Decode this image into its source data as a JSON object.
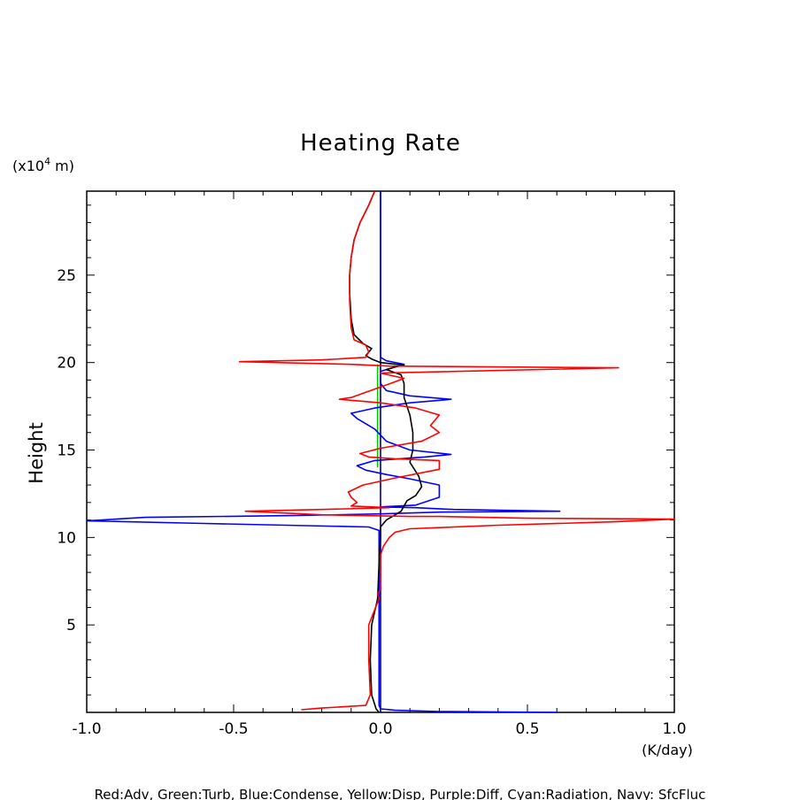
{
  "chart_data": {
    "type": "line",
    "title": "Heating Rate",
    "xlabel": "(K/day)",
    "ylabel": "Height",
    "y_unit": "(x10^4 m)",
    "y_unit_parts": {
      "prefix": "(x10",
      "exp": "4",
      "suffix": " m)"
    },
    "xlim": [
      -1.0,
      1.0
    ],
    "ylim": [
      0,
      29.8
    ],
    "x_ticks": [
      "-1.0",
      "-0.5",
      "0.0",
      "0.5",
      "1.0"
    ],
    "x_tick_values": [
      -1.0,
      -0.5,
      0.0,
      0.5,
      1.0
    ],
    "y_ticks": [
      "5",
      "10",
      "15",
      "20",
      "25"
    ],
    "y_tick_values": [
      5,
      10,
      15,
      20,
      25
    ],
    "grid": false,
    "caption": "Red:Adv, Green:Turb, Blue:Condense, Yellow:Disp, Purple:Diff, Cyan:Radiation, Navy: SfcFluc",
    "series": [
      {
        "name": "Navy",
        "color": "#000080",
        "points": [
          [
            0.0,
            0.0
          ],
          [
            0.0,
            29.8
          ]
        ]
      },
      {
        "name": "Green",
        "color": "#00cc00",
        "points": [
          [
            -0.01,
            14.0
          ],
          [
            -0.01,
            19.9
          ]
        ]
      },
      {
        "name": "Blue",
        "color": "#0000ff",
        "points": [
          [
            0.6,
            0.0
          ],
          [
            0.2,
            0.05
          ],
          [
            0.05,
            0.12
          ],
          [
            0.0,
            0.2
          ],
          [
            -0.005,
            0.4
          ],
          [
            -0.005,
            10.4
          ],
          [
            -0.04,
            10.6
          ],
          [
            -0.6,
            10.8
          ],
          [
            -1.0,
            10.95
          ],
          [
            -0.8,
            11.15
          ],
          [
            -0.3,
            11.25
          ],
          [
            0.0,
            11.35
          ],
          [
            0.2,
            11.45
          ],
          [
            0.61,
            11.5
          ],
          [
            0.25,
            11.6
          ],
          [
            0.12,
            11.7
          ],
          [
            0.0,
            11.75
          ],
          [
            0.12,
            11.85
          ],
          [
            0.2,
            12.3
          ],
          [
            0.2,
            13.0
          ],
          [
            0.1,
            13.35
          ],
          [
            0.02,
            13.6
          ],
          [
            -0.05,
            13.85
          ],
          [
            -0.08,
            14.1
          ],
          [
            -0.02,
            14.4
          ],
          [
            0.15,
            14.6
          ],
          [
            0.24,
            14.75
          ],
          [
            0.1,
            15.0
          ],
          [
            0.02,
            15.5
          ],
          [
            -0.02,
            16.2
          ],
          [
            -0.08,
            16.8
          ],
          [
            -0.1,
            17.1
          ],
          [
            -0.02,
            17.4
          ],
          [
            0.1,
            17.7
          ],
          [
            0.24,
            17.9
          ],
          [
            0.1,
            18.1
          ],
          [
            0.02,
            18.4
          ],
          [
            0.0,
            18.8
          ],
          [
            0.0,
            19.5
          ],
          [
            0.08,
            19.9
          ],
          [
            0.02,
            20.1
          ],
          [
            0.0,
            20.3
          ],
          [
            0.0,
            29.8
          ]
        ]
      },
      {
        "name": "Black",
        "color": "#000000",
        "points": [
          [
            -0.005,
            0.0
          ],
          [
            -0.015,
            0.2
          ],
          [
            -0.03,
            1.0
          ],
          [
            -0.035,
            3.0
          ],
          [
            -0.03,
            5.0
          ],
          [
            -0.01,
            6.5
          ],
          [
            -0.005,
            8.5
          ],
          [
            0.0,
            10.0
          ],
          [
            0.0,
            10.6
          ],
          [
            0.02,
            11.0
          ],
          [
            0.05,
            11.3
          ],
          [
            0.07,
            11.5
          ],
          [
            0.08,
            11.8
          ],
          [
            0.09,
            12.1
          ],
          [
            0.12,
            12.4
          ],
          [
            0.14,
            12.9
          ],
          [
            0.13,
            13.5
          ],
          [
            0.1,
            14.3
          ],
          [
            0.11,
            15.0
          ],
          [
            0.11,
            16.0
          ],
          [
            0.1,
            17.0
          ],
          [
            0.08,
            18.0
          ],
          [
            0.08,
            18.8
          ],
          [
            0.07,
            19.3
          ],
          [
            0.02,
            19.6
          ],
          [
            0.05,
            19.75
          ],
          [
            0.08,
            19.85
          ],
          [
            0.0,
            20.0
          ],
          [
            -0.03,
            20.2
          ],
          [
            -0.05,
            20.4
          ],
          [
            -0.03,
            20.8
          ],
          [
            -0.06,
            21.1
          ],
          [
            -0.09,
            21.6
          ],
          [
            -0.1,
            22.5
          ],
          [
            -0.105,
            24.0
          ],
          [
            -0.105,
            25.0
          ],
          [
            -0.1,
            26.0
          ],
          [
            -0.09,
            27.0
          ],
          [
            -0.07,
            28.0
          ],
          [
            -0.04,
            29.0
          ],
          [
            -0.02,
            29.8
          ]
        ]
      },
      {
        "name": "Red",
        "color": "#ff0000",
        "points": [
          [
            -0.27,
            0.15
          ],
          [
            -0.2,
            0.25
          ],
          [
            -0.05,
            0.4
          ],
          [
            -0.035,
            1.0
          ],
          [
            -0.04,
            3.0
          ],
          [
            -0.04,
            5.0
          ],
          [
            -0.005,
            6.5
          ],
          [
            -0.01,
            6.8
          ],
          [
            0.0,
            7.0
          ],
          [
            0.0,
            9.0
          ],
          [
            0.01,
            9.5
          ],
          [
            0.03,
            10.0
          ],
          [
            0.05,
            10.3
          ],
          [
            0.1,
            10.5
          ],
          [
            0.4,
            10.7
          ],
          [
            0.8,
            10.9
          ],
          [
            1.0,
            11.05
          ],
          [
            0.5,
            11.1
          ],
          [
            0.2,
            11.2
          ],
          [
            0.1,
            11.2
          ],
          [
            -0.2,
            11.3
          ],
          [
            -0.46,
            11.5
          ],
          [
            -0.2,
            11.6
          ],
          [
            0.03,
            11.7
          ],
          [
            -0.1,
            11.8
          ],
          [
            -0.08,
            12.0
          ],
          [
            -0.1,
            12.3
          ],
          [
            -0.11,
            12.6
          ],
          [
            -0.06,
            13.0
          ],
          [
            0.05,
            13.4
          ],
          [
            0.2,
            13.9
          ],
          [
            0.2,
            14.4
          ],
          [
            0.05,
            14.5
          ],
          [
            -0.04,
            14.6
          ],
          [
            -0.07,
            14.8
          ],
          [
            0.0,
            15.1
          ],
          [
            0.14,
            15.5
          ],
          [
            0.2,
            16.0
          ],
          [
            0.17,
            16.4
          ],
          [
            0.2,
            17.0
          ],
          [
            0.12,
            17.4
          ],
          [
            0.0,
            17.7
          ],
          [
            -0.14,
            17.9
          ],
          [
            -0.1,
            18.0
          ],
          [
            -0.05,
            18.3
          ],
          [
            0.0,
            18.6
          ],
          [
            0.05,
            18.9
          ],
          [
            0.08,
            19.1
          ],
          [
            0.0,
            19.4
          ],
          [
            0.81,
            19.7
          ],
          [
            0.03,
            19.8
          ],
          [
            -0.1,
            19.9
          ],
          [
            -0.48,
            20.05
          ],
          [
            -0.2,
            20.15
          ],
          [
            -0.05,
            20.3
          ],
          [
            -0.04,
            20.6
          ],
          [
            -0.05,
            21.0
          ],
          [
            -0.09,
            21.3
          ],
          [
            -0.1,
            22.0
          ],
          [
            -0.105,
            23.5
          ],
          [
            -0.105,
            25.0
          ],
          [
            -0.1,
            26.0
          ],
          [
            -0.09,
            27.0
          ],
          [
            -0.07,
            28.0
          ],
          [
            -0.04,
            29.0
          ],
          [
            -0.02,
            29.8
          ]
        ]
      }
    ]
  }
}
